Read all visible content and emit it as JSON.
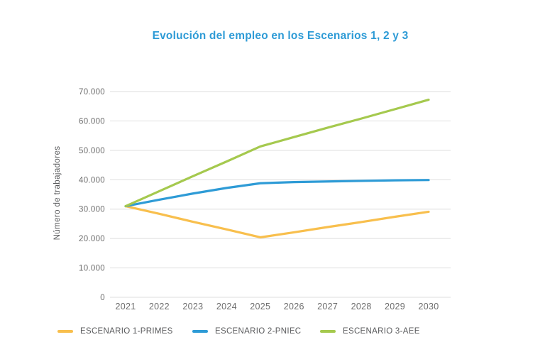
{
  "chart_data": {
    "type": "line",
    "title": "Evolución del empleo en los Escenarios 1, 2 y 3",
    "xlabel": "",
    "ylabel": "Número de trabajadores",
    "categories": [
      "2021",
      "2022",
      "2023",
      "2024",
      "2025",
      "2026",
      "2027",
      "2028",
      "2029",
      "2030"
    ],
    "y_ticks": [
      "0",
      "10.000",
      "20.000",
      "30.000",
      "40.000",
      "50.000",
      "60.000",
      "70.000"
    ],
    "ylim": [
      0,
      70000
    ],
    "grid": "horizontal",
    "legend_position": "bottom",
    "series": [
      {
        "name": "ESCENARIO 1-PRIMES",
        "color": "#F8BF4D",
        "values": [
          31000,
          28400,
          25700,
          23100,
          20400,
          22100,
          23900,
          25600,
          27400,
          29100
        ]
      },
      {
        "name": "ESCENARIO 2-PNIEC",
        "color": "#2E9BD6",
        "values": [
          31000,
          33200,
          35300,
          37200,
          38800,
          39200,
          39400,
          39600,
          39800,
          39900
        ]
      },
      {
        "name": "ESCENARIO 3-AEE",
        "color": "#A5C94E",
        "values": [
          31000,
          36100,
          41200,
          46200,
          51300,
          54500,
          57700,
          60800,
          64000,
          67200
        ]
      }
    ]
  },
  "style": {
    "title_color": "#2E9BD6",
    "grid_color": "#E4E4E4",
    "tick_text_color": "#6D6D6D",
    "axis_title_color": "#58595B",
    "legend_text_color": "#58595B"
  }
}
